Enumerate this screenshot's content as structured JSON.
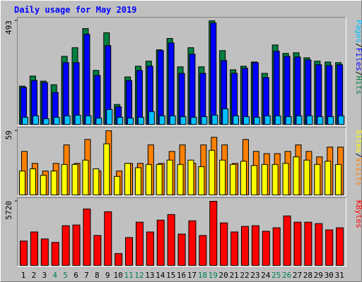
{
  "title": "Daily usage for May 2019",
  "separator": "/",
  "chart_data": [
    {
      "type": "bar",
      "ylim": [
        0,
        493
      ],
      "yticks": [
        493
      ],
      "series": [
        {
          "name": "Hits",
          "color": "#008040",
          "values": [
            182,
            230,
            206,
            189,
            324,
            365,
            456,
            257,
            436,
            95,
            226,
            277,
            301,
            355,
            409,
            274,
            365,
            274,
            493,
            351,
            260,
            277,
            297,
            243,
            378,
            338,
            341,
            317,
            301,
            297,
            294
          ]
        },
        {
          "name": "Files",
          "color": "#0000ff",
          "values": [
            176,
            209,
            199,
            152,
            294,
            294,
            429,
            233,
            375,
            84,
            209,
            257,
            277,
            351,
            388,
            243,
            334,
            243,
            483,
            304,
            243,
            267,
            294,
            223,
            348,
            324,
            321,
            307,
            284,
            280,
            284
          ]
        },
        {
          "name": "Pages",
          "color": "#00c0ff",
          "values": [
            34,
            41,
            27,
            34,
            41,
            44,
            41,
            30,
            71,
            34,
            30,
            34,
            61,
            41,
            41,
            37,
            34,
            37,
            44,
            74,
            41,
            37,
            34,
            41,
            41,
            37,
            41,
            41,
            37,
            37,
            41
          ]
        }
      ]
    },
    {
      "type": "bar",
      "ylim": [
        0,
        59
      ],
      "yticks": [
        59
      ],
      "series": [
        {
          "name": "Visits",
          "color": "#ff8000",
          "values": [
            40,
            29,
            22,
            29,
            46,
            29,
            51,
            22,
            59,
            22,
            29,
            29,
            46,
            29,
            40,
            46,
            29,
            46,
            53,
            46,
            29,
            51,
            40,
            38,
            38,
            40,
            46,
            40,
            35,
            44,
            44
          ]
        },
        {
          "name": "Sites",
          "color": "#ffff00",
          "values": [
            22,
            24,
            18,
            22,
            28,
            28,
            32,
            24,
            47,
            17,
            29,
            25,
            28,
            28,
            32,
            28,
            32,
            26,
            41,
            32,
            28,
            31,
            27,
            28,
            28,
            29,
            35,
            32,
            28,
            31,
            28
          ]
        }
      ]
    },
    {
      "type": "bar",
      "ylim": [
        0,
        5720
      ],
      "yticks": [
        5720
      ],
      "categories": [
        "1",
        "2",
        "3",
        "4",
        "5",
        "6",
        "7",
        "8",
        "9",
        "10",
        "11",
        "12",
        "13",
        "14",
        "15",
        "16",
        "17",
        "18",
        "19",
        "20",
        "21",
        "22",
        "23",
        "24",
        "25",
        "26",
        "27",
        "28",
        "29",
        "30",
        "31"
      ],
      "highlight_categories": [
        "4",
        "5",
        "11",
        "12",
        "18",
        "19",
        "25",
        "26"
      ],
      "category_color": "#000000",
      "highlight_color": "#00805c",
      "series": [
        {
          "name": "KBytes",
          "color": "#ff0000",
          "values": [
            2177,
            2985,
            2363,
            2052,
            3544,
            3606,
            5036,
            2673,
            4787,
            1057,
            2487,
            3855,
            2985,
            4041,
            4539,
            2798,
            3979,
            2673,
            5720,
            3793,
            2985,
            3482,
            3544,
            3047,
            3357,
            4414,
            3855,
            3855,
            3730,
            3171,
            3357
          ]
        }
      ]
    }
  ]
}
